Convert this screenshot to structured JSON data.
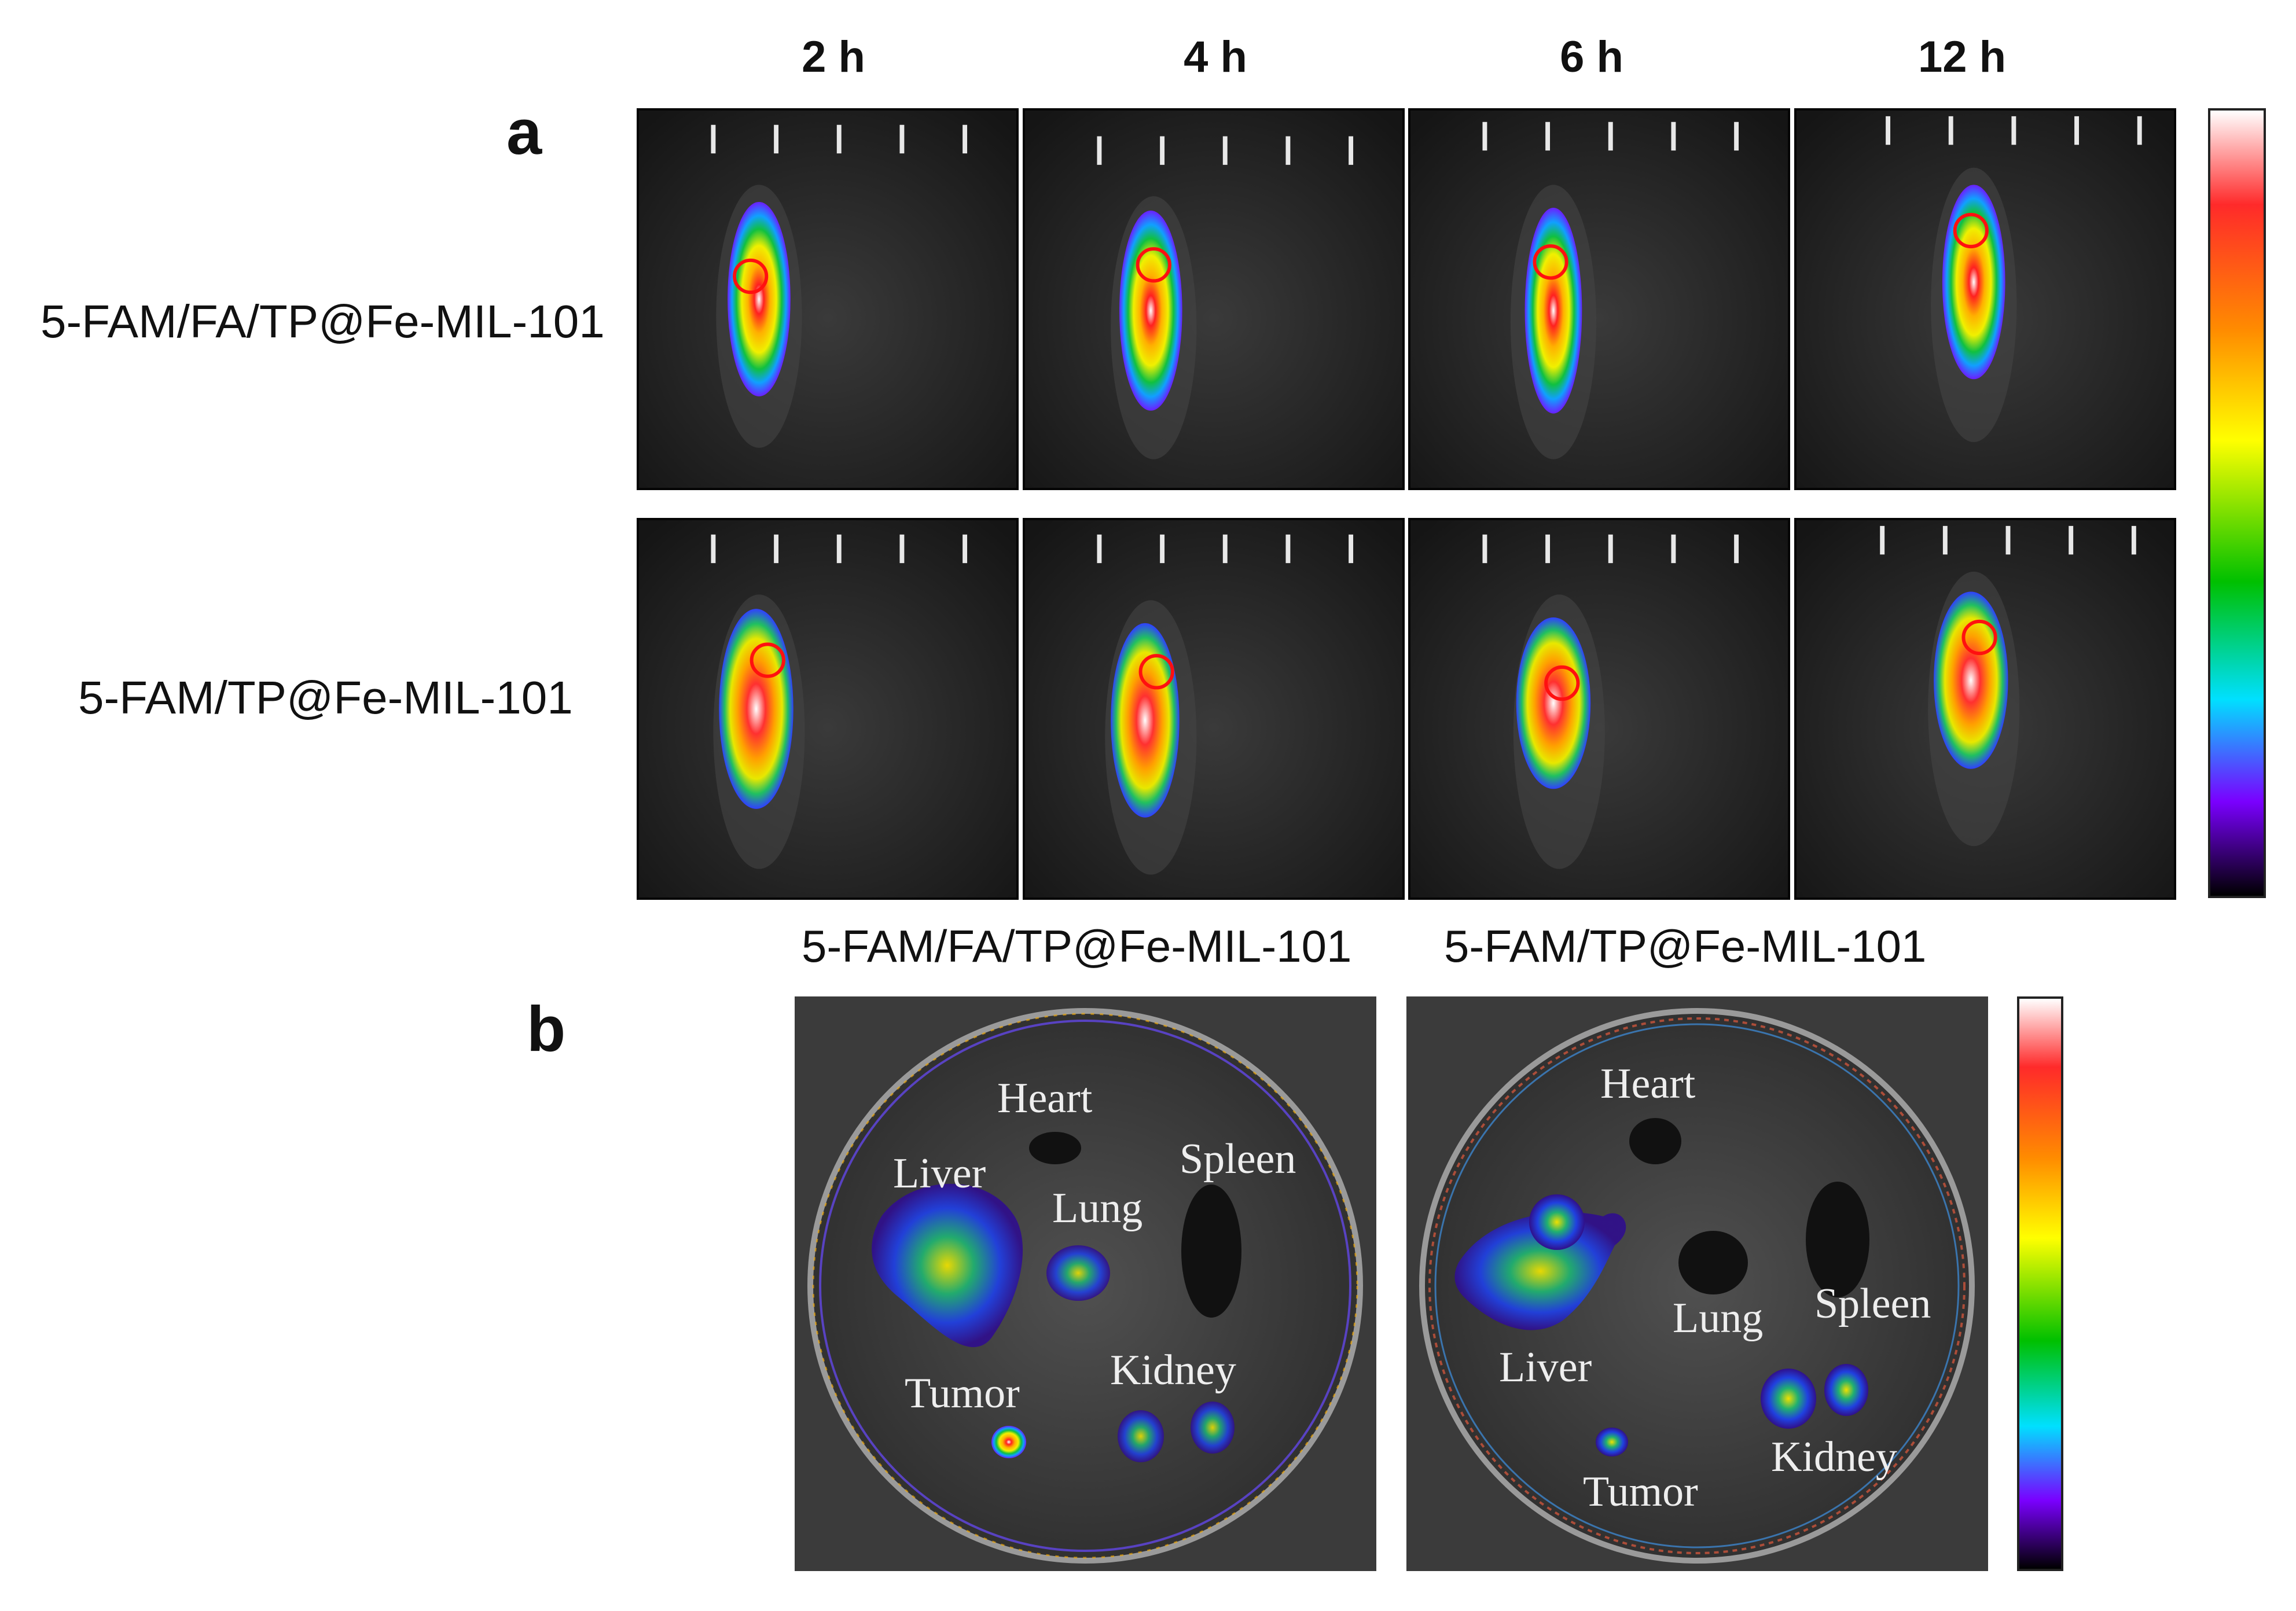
{
  "panel_a": {
    "letter": "a",
    "time_labels": [
      "2 h",
      "4 h",
      "6 h",
      "12 h"
    ],
    "row_labels": [
      "5-FAM/FA/TP@Fe-MIL-101",
      "5-FAM/TP@Fe-MIL-101"
    ]
  },
  "panel_b": {
    "letter": "b",
    "dish_labels": [
      "5-FAM/FA/TP@Fe-MIL-101",
      "5-FAM/TP@Fe-MIL-101"
    ],
    "organs": {
      "heart": "Heart",
      "liver": "Liver",
      "lung": "Lung",
      "spleen": "Spleen",
      "tumor": "Tumor",
      "kidney": "Kidney"
    }
  },
  "colors": {
    "colorbar": [
      "#ffffff",
      "#ff2a2a",
      "#ff8c00",
      "#ffff00",
      "#00c000",
      "#00e0ff",
      "#7a00ff",
      "#000000"
    ]
  }
}
